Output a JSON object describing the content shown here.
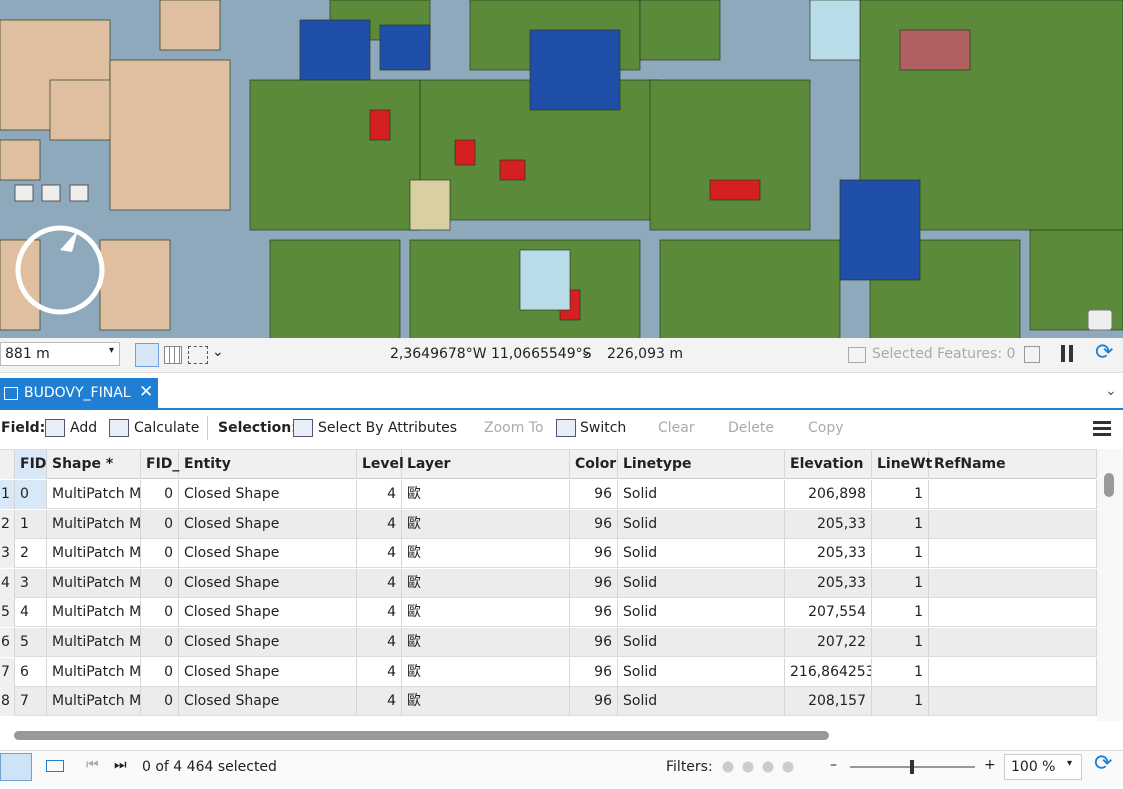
{
  "status_bar": {
    "scale": "881 m",
    "coordinates": "2,3649678°W 11,0665549°S",
    "elevation": "226,093 m",
    "selected_features": "Selected Features: 0"
  },
  "tab": {
    "title": "BUDOVY_FINAL"
  },
  "toolbar": {
    "field_label": "Field:",
    "add": "Add",
    "calculate": "Calculate",
    "selection_label": "Selection:",
    "select_by_attributes": "Select By Attributes",
    "zoom_to": "Zoom To",
    "switch": "Switch",
    "clear": "Clear",
    "delete": "Delete",
    "copy": "Copy"
  },
  "table": {
    "columns": [
      "FID",
      "Shape *",
      "FID_",
      "Entity",
      "Level",
      "Layer",
      "Color",
      "Linetype",
      "Elevation",
      "LineWt",
      "RefName"
    ],
    "rows": [
      [
        "1",
        "0",
        "MultiPatch M",
        "0",
        "Closed Shape",
        "4",
        "歐",
        "96",
        "Solid",
        "206,898",
        "1"
      ],
      [
        "2",
        "1",
        "MultiPatch M",
        "0",
        "Closed Shape",
        "4",
        "歐",
        "96",
        "Solid",
        "205,33",
        "1"
      ],
      [
        "3",
        "2",
        "MultiPatch M",
        "0",
        "Closed Shape",
        "4",
        "歐",
        "96",
        "Solid",
        "205,33",
        "1"
      ],
      [
        "4",
        "3",
        "MultiPatch M",
        "0",
        "Closed Shape",
        "4",
        "歐",
        "96",
        "Solid",
        "205,33",
        "1"
      ],
      [
        "5",
        "4",
        "MultiPatch M",
        "0",
        "Closed Shape",
        "4",
        "歐",
        "96",
        "Solid",
        "207,554",
        "1"
      ],
      [
        "6",
        "5",
        "MultiPatch M",
        "0",
        "Closed Shape",
        "4",
        "歐",
        "96",
        "Solid",
        "207,22",
        "1"
      ],
      [
        "7",
        "6",
        "MultiPatch M",
        "0",
        "Closed Shape",
        "4",
        "歐",
        "96",
        "Solid",
        "216,864253",
        "1"
      ],
      [
        "8",
        "7",
        "MultiPatch M",
        "0",
        "Closed Shape",
        "4",
        "歐",
        "96",
        "Solid",
        "208,157",
        "1"
      ]
    ]
  },
  "footer": {
    "selection": "0 of 4 464 selected",
    "filters": "Filters:",
    "zoom": "100 %"
  }
}
